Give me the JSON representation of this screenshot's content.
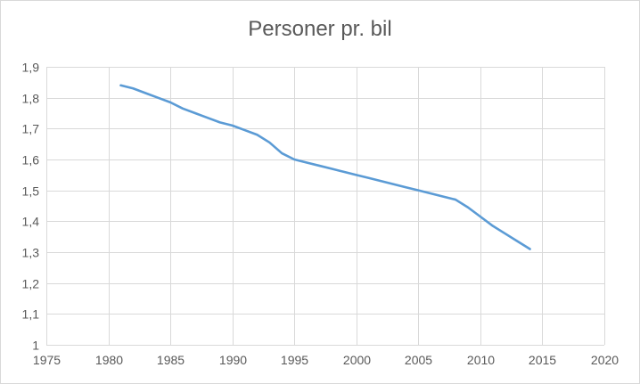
{
  "chart_data": {
    "type": "line",
    "title": "Personer pr. bil",
    "xlabel": "",
    "ylabel": "",
    "xlim": [
      1975,
      2020
    ],
    "ylim": [
      1,
      1.9
    ],
    "x_ticks": [
      1975,
      1980,
      1985,
      1990,
      1995,
      2000,
      2005,
      2010,
      2015,
      2020
    ],
    "y_ticks": [
      1,
      1.1,
      1.2,
      1.3,
      1.4,
      1.5,
      1.6,
      1.7,
      1.8,
      1.9
    ],
    "x_tick_labels": [
      "1975",
      "1980",
      "1985",
      "1990",
      "1995",
      "2000",
      "2005",
      "2010",
      "2015",
      "2020"
    ],
    "y_tick_labels": [
      "1",
      "1,1",
      "1,2",
      "1,3",
      "1,4",
      "1,5",
      "1,6",
      "1,7",
      "1,8",
      "1,9"
    ],
    "grid": "both",
    "legend": "none",
    "series": [
      {
        "color": "#5b9bd5",
        "x": [
          1981,
          1982,
          1983,
          1984,
          1985,
          1986,
          1987,
          1988,
          1989,
          1990,
          1991,
          1992,
          1993,
          1994,
          1995,
          1996,
          1997,
          1998,
          1999,
          2000,
          2001,
          2002,
          2003,
          2004,
          2005,
          2006,
          2007,
          2008,
          2009,
          2010,
          2011,
          2012,
          2013,
          2014
        ],
        "y": [
          1.84,
          1.83,
          1.815,
          1.8,
          1.785,
          1.765,
          1.75,
          1.735,
          1.72,
          1.71,
          1.695,
          1.68,
          1.655,
          1.62,
          1.6,
          1.59,
          1.58,
          1.57,
          1.56,
          1.55,
          1.54,
          1.53,
          1.52,
          1.51,
          1.5,
          1.49,
          1.48,
          1.47,
          1.445,
          1.415,
          1.385,
          1.36,
          1.335,
          1.31
        ]
      }
    ]
  }
}
